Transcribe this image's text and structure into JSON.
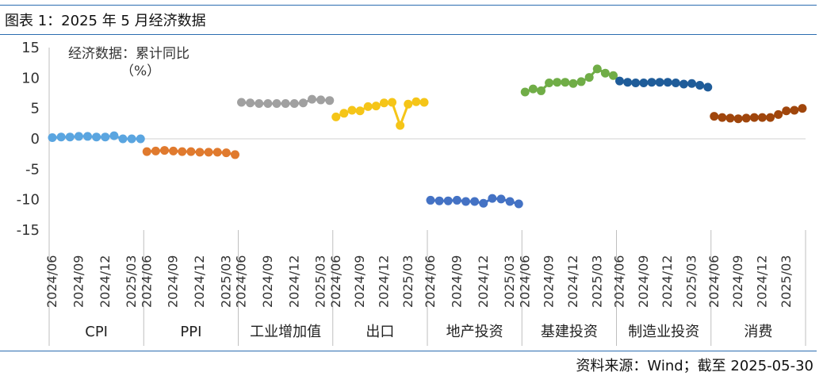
{
  "figure": {
    "title": "图表 1：2025 年 5 月经济数据",
    "source": "资料来源：Wind；截至 2025-05-30"
  },
  "chart_data": {
    "type": "line",
    "title": "经济数据：累计同比",
    "subtitle": "（%）",
    "ylim": [
      -15,
      15
    ],
    "yticks": [
      -15,
      -10,
      -5,
      0,
      5,
      10,
      15
    ],
    "grid": false,
    "x_tick_labels": [
      "2024/06",
      "2024/09",
      "2024/12",
      "2025/03"
    ],
    "groups": [
      {
        "name": "CPI",
        "color": "#5aa5e0",
        "values": [
          0.2,
          0.3,
          0.3,
          0.4,
          0.4,
          0.3,
          0.3,
          0.5,
          0.0,
          0.0,
          0.0
        ]
      },
      {
        "name": "PPI",
        "color": "#e07a2e",
        "values": [
          -2.1,
          -2.0,
          -1.9,
          -2.0,
          -2.1,
          -2.1,
          -2.2,
          -2.2,
          -2.2,
          -2.3,
          -2.6
        ]
      },
      {
        "name": "工业增加值",
        "color": "#a0a0a0",
        "values": [
          6.0,
          5.9,
          5.8,
          5.8,
          5.8,
          5.8,
          5.8,
          5.9,
          6.5,
          6.4,
          6.3
        ]
      },
      {
        "name": "出口",
        "color": "#f5c518",
        "values": [
          3.6,
          4.2,
          4.7,
          4.6,
          5.3,
          5.4,
          5.9,
          6.0,
          2.2,
          5.7,
          6.1,
          6.0
        ]
      },
      {
        "name": "地产投资",
        "color": "#4472c4",
        "values": [
          -10.1,
          -10.2,
          -10.2,
          -10.1,
          -10.3,
          -10.3,
          -10.6,
          -9.8,
          -9.9,
          -10.3,
          -10.7
        ]
      },
      {
        "name": "基建投资",
        "color": "#70ad47",
        "values": [
          7.7,
          8.2,
          7.9,
          9.2,
          9.3,
          9.3,
          9.1,
          9.4,
          10.1,
          11.5,
          10.8,
          10.4
        ]
      },
      {
        "name": "制造业投资",
        "color": "#1f5c99",
        "values": [
          9.5,
          9.3,
          9.2,
          9.2,
          9.3,
          9.3,
          9.3,
          9.2,
          9.0,
          9.1,
          8.8,
          8.5
        ]
      },
      {
        "name": "消费",
        "color": "#a0460c",
        "values": [
          3.7,
          3.5,
          3.4,
          3.3,
          3.4,
          3.5,
          3.5,
          3.5,
          4.0,
          4.6,
          4.7,
          5.0
        ]
      }
    ]
  }
}
